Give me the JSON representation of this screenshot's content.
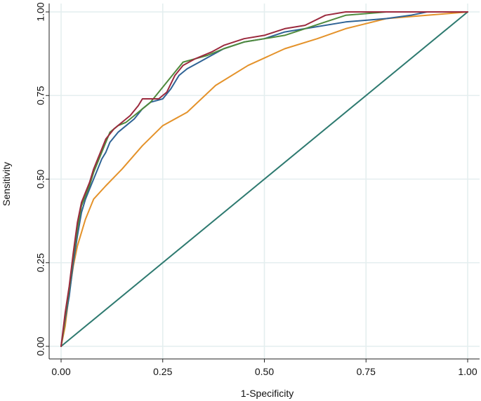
{
  "chart_data": {
    "type": "line",
    "title": "",
    "xlabel": "1-Specificity",
    "ylabel": "Sensitivity",
    "xlim": [
      0,
      1
    ],
    "ylim": [
      0,
      1
    ],
    "grid": true,
    "legend": "none",
    "x_ticks": [
      "0.00",
      "0.25",
      "0.50",
      "0.75",
      "1.00"
    ],
    "y_ticks": [
      "0.00",
      "0.25",
      "0.50",
      "0.75",
      "1.00"
    ],
    "series": [
      {
        "color": "#2f6395",
        "points": [
          [
            0,
            0
          ],
          [
            0.005,
            0.04
          ],
          [
            0.01,
            0.08
          ],
          [
            0.02,
            0.15
          ],
          [
            0.03,
            0.25
          ],
          [
            0.04,
            0.33
          ],
          [
            0.05,
            0.4
          ],
          [
            0.06,
            0.44
          ],
          [
            0.07,
            0.47
          ],
          [
            0.08,
            0.5
          ],
          [
            0.09,
            0.53
          ],
          [
            0.1,
            0.56
          ],
          [
            0.11,
            0.58
          ],
          [
            0.12,
            0.61
          ],
          [
            0.14,
            0.64
          ],
          [
            0.16,
            0.66
          ],
          [
            0.18,
            0.68
          ],
          [
            0.2,
            0.71
          ],
          [
            0.22,
            0.73
          ],
          [
            0.25,
            0.74
          ],
          [
            0.27,
            0.77
          ],
          [
            0.29,
            0.81
          ],
          [
            0.31,
            0.83
          ],
          [
            0.34,
            0.85
          ],
          [
            0.37,
            0.87
          ],
          [
            0.4,
            0.89
          ],
          [
            0.45,
            0.91
          ],
          [
            0.5,
            0.92
          ],
          [
            0.55,
            0.94
          ],
          [
            0.6,
            0.95
          ],
          [
            0.7,
            0.97
          ],
          [
            0.8,
            0.98
          ],
          [
            0.86,
            0.99
          ],
          [
            0.9,
            1.0
          ],
          [
            1.0,
            1.0
          ]
        ]
      },
      {
        "color": "#9b2a3e",
        "points": [
          [
            0,
            0
          ],
          [
            0.005,
            0.05
          ],
          [
            0.01,
            0.1
          ],
          [
            0.02,
            0.18
          ],
          [
            0.03,
            0.28
          ],
          [
            0.04,
            0.37
          ],
          [
            0.05,
            0.43
          ],
          [
            0.06,
            0.46
          ],
          [
            0.07,
            0.49
          ],
          [
            0.08,
            0.53
          ],
          [
            0.09,
            0.56
          ],
          [
            0.1,
            0.59
          ],
          [
            0.11,
            0.62
          ],
          [
            0.13,
            0.65
          ],
          [
            0.15,
            0.67
          ],
          [
            0.17,
            0.69
          ],
          [
            0.19,
            0.72
          ],
          [
            0.2,
            0.74
          ],
          [
            0.24,
            0.74
          ],
          [
            0.26,
            0.76
          ],
          [
            0.28,
            0.81
          ],
          [
            0.3,
            0.84
          ],
          [
            0.33,
            0.86
          ],
          [
            0.37,
            0.88
          ],
          [
            0.4,
            0.9
          ],
          [
            0.45,
            0.92
          ],
          [
            0.5,
            0.93
          ],
          [
            0.55,
            0.95
          ],
          [
            0.6,
            0.96
          ],
          [
            0.65,
            0.99
          ],
          [
            0.7,
            1.0
          ],
          [
            1.0,
            1.0
          ]
        ]
      },
      {
        "color": "#4f8a3c",
        "points": [
          [
            0,
            0
          ],
          [
            0.005,
            0.04
          ],
          [
            0.01,
            0.09
          ],
          [
            0.02,
            0.17
          ],
          [
            0.03,
            0.27
          ],
          [
            0.04,
            0.35
          ],
          [
            0.05,
            0.42
          ],
          [
            0.06,
            0.45
          ],
          [
            0.07,
            0.48
          ],
          [
            0.08,
            0.52
          ],
          [
            0.09,
            0.55
          ],
          [
            0.1,
            0.58
          ],
          [
            0.11,
            0.61
          ],
          [
            0.12,
            0.64
          ],
          [
            0.14,
            0.66
          ],
          [
            0.16,
            0.67
          ],
          [
            0.18,
            0.69
          ],
          [
            0.2,
            0.71
          ],
          [
            0.22,
            0.73
          ],
          [
            0.24,
            0.76
          ],
          [
            0.26,
            0.79
          ],
          [
            0.28,
            0.82
          ],
          [
            0.3,
            0.85
          ],
          [
            0.33,
            0.86
          ],
          [
            0.36,
            0.87
          ],
          [
            0.4,
            0.89
          ],
          [
            0.45,
            0.91
          ],
          [
            0.5,
            0.92
          ],
          [
            0.55,
            0.93
          ],
          [
            0.6,
            0.95
          ],
          [
            0.65,
            0.97
          ],
          [
            0.7,
            0.99
          ],
          [
            0.8,
            1.0
          ],
          [
            1.0,
            1.0
          ]
        ]
      },
      {
        "color": "#e4922a",
        "points": [
          [
            0,
            0
          ],
          [
            0.01,
            0.06
          ],
          [
            0.02,
            0.16
          ],
          [
            0.03,
            0.24
          ],
          [
            0.04,
            0.3
          ],
          [
            0.06,
            0.38
          ],
          [
            0.08,
            0.44
          ],
          [
            0.11,
            0.48
          ],
          [
            0.15,
            0.53
          ],
          [
            0.2,
            0.6
          ],
          [
            0.25,
            0.66
          ],
          [
            0.31,
            0.7
          ],
          [
            0.38,
            0.78
          ],
          [
            0.46,
            0.84
          ],
          [
            0.55,
            0.89
          ],
          [
            0.63,
            0.92
          ],
          [
            0.7,
            0.95
          ],
          [
            0.8,
            0.98
          ],
          [
            0.9,
            0.99
          ],
          [
            1.0,
            1.0
          ]
        ]
      },
      {
        "color": "#2e7a70",
        "points": [
          [
            0,
            0
          ],
          [
            1,
            1
          ]
        ]
      }
    ]
  }
}
